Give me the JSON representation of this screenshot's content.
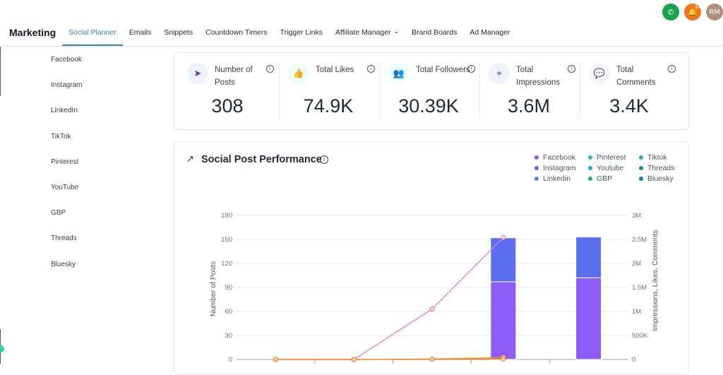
{
  "header": {
    "brand": "Marketing",
    "nav": [
      {
        "label": "Social Planner",
        "active": true
      },
      {
        "label": "Emails"
      },
      {
        "label": "Snippets"
      },
      {
        "label": "Countdown Timers"
      },
      {
        "label": "Trigger Links"
      },
      {
        "label": "Affiliate Manager",
        "dropdown": true
      },
      {
        "label": "Brand Boards"
      },
      {
        "label": "Ad Manager"
      }
    ],
    "icons": {
      "phone": "phone-icon",
      "bell": "bell-icon",
      "avatar_initials": "RM"
    },
    "colors": {
      "phone": "#16a34a",
      "bell": "#f97316",
      "active_tab": "#2e86c1"
    }
  },
  "sidebar": {
    "items": [
      {
        "label": "Facebook"
      },
      {
        "label": "Instagram"
      },
      {
        "label": "LinkedIn"
      },
      {
        "label": "TikTok"
      },
      {
        "label": "Pinterest"
      },
      {
        "label": "YouTube"
      },
      {
        "label": "GBP"
      },
      {
        "label": "Threads"
      },
      {
        "label": "Bluesky"
      }
    ]
  },
  "stats": [
    {
      "label": "Number of Posts",
      "value": "308",
      "icon": "send-icon",
      "icon_bg": "#eef2ff",
      "icon_color": "#4338ca"
    },
    {
      "label": "Total Likes",
      "value": "74.9K",
      "icon": "thumbs-up-icon",
      "icon_bg": "#ecfdf5",
      "icon_color": "#059669"
    },
    {
      "label": "Total Followers",
      "value": "30.39K",
      "icon": "users-icon",
      "icon_bg": "#ecfeff",
      "icon_color": "#0e7490"
    },
    {
      "label": "Total Impressions",
      "value": "3.6M",
      "icon": "cursor-click-icon",
      "icon_bg": "#eef2ff",
      "icon_color": "#4338ca"
    },
    {
      "label": "Total Comments",
      "value": "3.4K",
      "icon": "message-circle-icon",
      "icon_bg": "#f5f3ff",
      "icon_color": "#7c3aed"
    }
  ],
  "chart_section": {
    "title": "Social Post Performance",
    "legend": [
      {
        "name": "Facebook",
        "color": "#8b5cf6"
      },
      {
        "name": "Pinterest",
        "color": "#22b8cf"
      },
      {
        "name": "Tiktok",
        "color": "#14b8a6"
      },
      {
        "name": "Instagram",
        "color": "#6366f1"
      },
      {
        "name": "Youtube",
        "color": "#06b6d4"
      },
      {
        "name": "Threads",
        "color": "#0891b2"
      },
      {
        "name": "Linkedin",
        "color": "#5b7ff0"
      },
      {
        "name": "GBP",
        "color": "#10b981"
      },
      {
        "name": "Bluesky",
        "color": "#0284c7"
      }
    ]
  },
  "chart_data": {
    "type": "bar",
    "ylabel": "Number of Posts",
    "y2label": "Impressions, Likes, Comments",
    "ylim": [
      0,
      180
    ],
    "yticks": [
      "0",
      "30",
      "60",
      "90",
      "120",
      "150",
      "180"
    ],
    "y2lim": [
      0,
      3000000
    ],
    "y2ticks": [
      "0",
      "500K",
      "1M",
      "1.5M",
      "2M",
      "2.5M",
      "3M"
    ],
    "categories": [
      "",
      "",
      "",
      "",
      ""
    ],
    "series": [
      {
        "name": "Facebook",
        "kind": "bar",
        "color": "#8b5cf6",
        "values": [
          0,
          0,
          0,
          97,
          102
        ]
      },
      {
        "name": "Linkedin",
        "kind": "bar",
        "color": "#5b6ff0",
        "values": [
          0,
          0,
          0,
          55,
          51
        ]
      }
    ],
    "lines": [
      {
        "color": "#e879c9",
        "axis": "right",
        "values": [
          0,
          0,
          1050000,
          2540000
        ]
      },
      {
        "color": "#f59e0b",
        "axis": "right",
        "values": [
          0,
          0,
          8000,
          40000
        ]
      },
      {
        "color": "#f97316",
        "axis": "right",
        "values": [
          0,
          0,
          5000,
          10000
        ]
      }
    ],
    "line_points": [
      1,
      2,
      3,
      4
    ],
    "grid": true
  }
}
